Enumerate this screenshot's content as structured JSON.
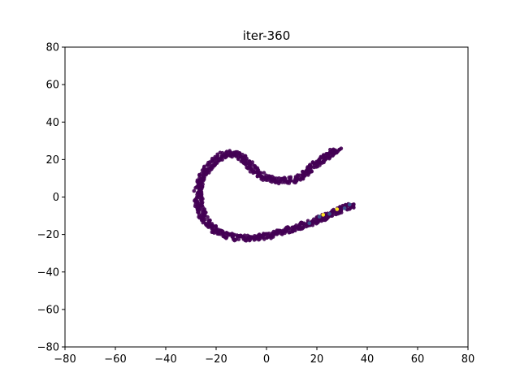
{
  "chart_data": {
    "type": "scatter",
    "title": "iter-360",
    "xlabel": "",
    "ylabel": "",
    "xlim": [
      -80,
      80
    ],
    "ylim": [
      -80,
      80
    ],
    "xticks": [
      -80,
      -60,
      -40,
      -20,
      0,
      20,
      40,
      60,
      80
    ],
    "yticks": [
      -80,
      -60,
      -40,
      -20,
      0,
      20,
      40,
      60,
      80
    ],
    "grid": false,
    "colormap": "viridis",
    "colors": {
      "low": "#440154",
      "mid": "#3b528b",
      "high": "#fde725"
    },
    "curve_path": [
      [
        29.0,
        24.5
      ],
      [
        27.0,
        25.0
      ],
      [
        25.0,
        22.5
      ],
      [
        22.0,
        20.0
      ],
      [
        19.0,
        17.0
      ],
      [
        16.0,
        13.5
      ],
      [
        13.0,
        10.5
      ],
      [
        10.0,
        9.0
      ],
      [
        7.0,
        8.5
      ],
      [
        4.0,
        9.0
      ],
      [
        1.0,
        10.0
      ],
      [
        -2.0,
        11.5
      ],
      [
        -5.0,
        14.5
      ],
      [
        -8.0,
        19.0
      ],
      [
        -11.0,
        22.0
      ],
      [
        -14.0,
        23.5
      ],
      [
        -17.0,
        22.5
      ],
      [
        -20.0,
        20.0
      ],
      [
        -23.0,
        16.0
      ],
      [
        -25.5,
        11.0
      ],
      [
        -27.0,
        5.0
      ],
      [
        -27.0,
        -1.0
      ],
      [
        -26.5,
        -6.0
      ],
      [
        -25.0,
        -11.0
      ],
      [
        -22.5,
        -15.5
      ],
      [
        -19.0,
        -19.0
      ],
      [
        -15.0,
        -21.0
      ],
      [
        -11.0,
        -22.0
      ],
      [
        -6.0,
        -22.0
      ],
      [
        -1.0,
        -21.0
      ],
      [
        4.0,
        -19.5
      ],
      [
        9.0,
        -17.5
      ],
      [
        14.0,
        -15.5
      ],
      [
        19.0,
        -13.0
      ],
      [
        24.0,
        -10.0
      ],
      [
        29.0,
        -7.0
      ],
      [
        33.0,
        -5.0
      ],
      [
        35.0,
        -4.0
      ]
    ],
    "highlight_points": [
      {
        "x": 22.5,
        "y": -9.5,
        "value": 1.0
      },
      {
        "x": 28.0,
        "y": -6.5,
        "value": 0.95
      }
    ],
    "mid_points": [
      {
        "x": 21.0,
        "y": -10.5,
        "value": 0.3
      },
      {
        "x": 25.0,
        "y": -9.0,
        "value": 0.3
      },
      {
        "x": 31.0,
        "y": -6.0,
        "value": 0.3
      },
      {
        "x": 33.0,
        "y": -4.0,
        "value": 0.3
      },
      {
        "x": 17.0,
        "y": -14.0,
        "value": 0.3
      }
    ]
  }
}
